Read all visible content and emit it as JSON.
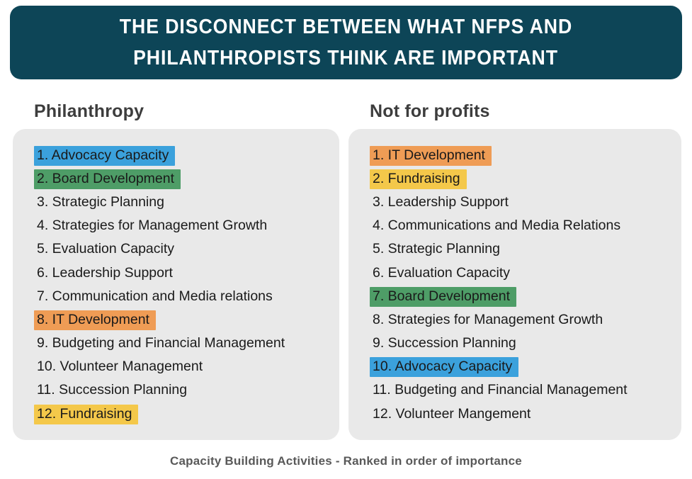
{
  "title": {
    "line1": "THE DISCONNECT BETWEEN WHAT NFPS AND",
    "line2": "PHILANTHROPISTS THINK ARE IMPORTANT"
  },
  "columns": [
    {
      "heading": "Philanthropy",
      "items": [
        {
          "rank": 1,
          "label": "Advocacy Capacity",
          "highlight": "blue"
        },
        {
          "rank": 2,
          "label": "Board Development",
          "highlight": "green"
        },
        {
          "rank": 3,
          "label": "Strategic Planning",
          "highlight": null
        },
        {
          "rank": 4,
          "label": "Strategies for Management Growth",
          "highlight": null
        },
        {
          "rank": 5,
          "label": "Evaluation Capacity",
          "highlight": null
        },
        {
          "rank": 6,
          "label": "Leadership Support",
          "highlight": null
        },
        {
          "rank": 7,
          "label": "Communication and Media relations",
          "highlight": null
        },
        {
          "rank": 8,
          "label": "IT Development",
          "highlight": "orange"
        },
        {
          "rank": 9,
          "label": "Budgeting and Financial Management",
          "highlight": null
        },
        {
          "rank": 10,
          "label": "Volunteer Management",
          "highlight": null
        },
        {
          "rank": 11,
          "label": "Succession Planning",
          "highlight": null
        },
        {
          "rank": 12,
          "label": "Fundraising",
          "highlight": "yellow"
        }
      ]
    },
    {
      "heading": "Not for profits",
      "items": [
        {
          "rank": 1,
          "label": "IT Development",
          "highlight": "orange"
        },
        {
          "rank": 2,
          "label": "Fundraising",
          "highlight": "yellow"
        },
        {
          "rank": 3,
          "label": "Leadership Support",
          "highlight": null
        },
        {
          "rank": 4,
          "label": "Communications and Media Relations",
          "highlight": null
        },
        {
          "rank": 5,
          "label": "Strategic Planning",
          "highlight": null
        },
        {
          "rank": 6,
          "label": "Evaluation Capacity",
          "highlight": null
        },
        {
          "rank": 7,
          "label": "Board Development",
          "highlight": "green"
        },
        {
          "rank": 8,
          "label": "Strategies for Management Growth",
          "highlight": null
        },
        {
          "rank": 9,
          "label": "Succession Planning",
          "highlight": null
        },
        {
          "rank": 10,
          "label": "Advocacy Capacity",
          "highlight": "blue"
        },
        {
          "rank": 11,
          "label": "Budgeting and Financial Management",
          "highlight": null
        },
        {
          "rank": 12,
          "label": "Volunteer Mangement",
          "highlight": null
        }
      ]
    }
  ],
  "caption": "Capacity Building Activities - Ranked in order of importance",
  "colors": {
    "banner": "#0d4557",
    "panel": "#e9e9e9",
    "highlight_blue": "#3ba1dc",
    "highlight_green": "#4e9d67",
    "highlight_orange": "#ef9c55",
    "highlight_yellow": "#f4c84a"
  }
}
